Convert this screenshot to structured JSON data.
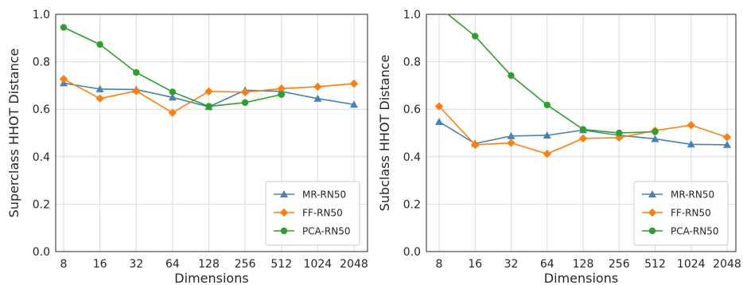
{
  "chart_data": [
    {
      "type": "line",
      "xlabel": "Dimensions",
      "ylabel": "Superclass HHOT Distance",
      "x": [
        "8",
        "16",
        "32",
        "64",
        "128",
        "256",
        "512",
        "1024",
        "2048"
      ],
      "ylim": [
        0.0,
        1.0
      ],
      "yticks": [
        "0.0",
        "0.2",
        "0.4",
        "0.6",
        "0.8",
        "1.0"
      ],
      "grid": true,
      "legend_position": "bottom-right",
      "series": [
        {
          "name": "MR-RN50",
          "color": "#4682b4",
          "marker": "triangle",
          "values": [
            0.71,
            0.685,
            0.683,
            0.65,
            0.61,
            0.68,
            0.675,
            0.645,
            0.62
          ]
        },
        {
          "name": "FF-RN50",
          "color": "#ff7f0e",
          "marker": "diamond",
          "values": [
            0.727,
            0.645,
            0.677,
            0.585,
            0.675,
            0.672,
            0.687,
            0.695,
            0.708
          ]
        },
        {
          "name": "PCA-RN50",
          "color": "#2ca02c",
          "marker": "circle",
          "values": [
            0.945,
            0.873,
            0.755,
            0.673,
            0.612,
            0.628,
            0.662,
            null,
            null
          ]
        }
      ]
    },
    {
      "type": "line",
      "xlabel": "Dimensions",
      "ylabel": "Subclass HHOT Distance",
      "x": [
        "8",
        "16",
        "32",
        "64",
        "128",
        "256",
        "512",
        "1024",
        "2048"
      ],
      "ylim": [
        0.0,
        1.0
      ],
      "yticks": [
        "0.0",
        "0.2",
        "0.4",
        "0.6",
        "0.8",
        "1.0"
      ],
      "grid": true,
      "legend_position": "bottom-right",
      "series": [
        {
          "name": "MR-RN50",
          "color": "#4682b4",
          "marker": "triangle",
          "values": [
            0.547,
            0.455,
            0.487,
            0.49,
            0.512,
            0.49,
            0.475,
            0.452,
            0.45
          ]
        },
        {
          "name": "FF-RN50",
          "color": "#ff7f0e",
          "marker": "diamond",
          "values": [
            0.612,
            0.45,
            0.458,
            0.412,
            0.477,
            0.48,
            0.51,
            0.533,
            0.482
          ]
        },
        {
          "name": "PCA-RN50",
          "color": "#2ca02c",
          "marker": "circle",
          "values": [
            1.03,
            0.908,
            0.742,
            0.618,
            0.515,
            0.5,
            0.505,
            null,
            null
          ]
        }
      ]
    }
  ]
}
